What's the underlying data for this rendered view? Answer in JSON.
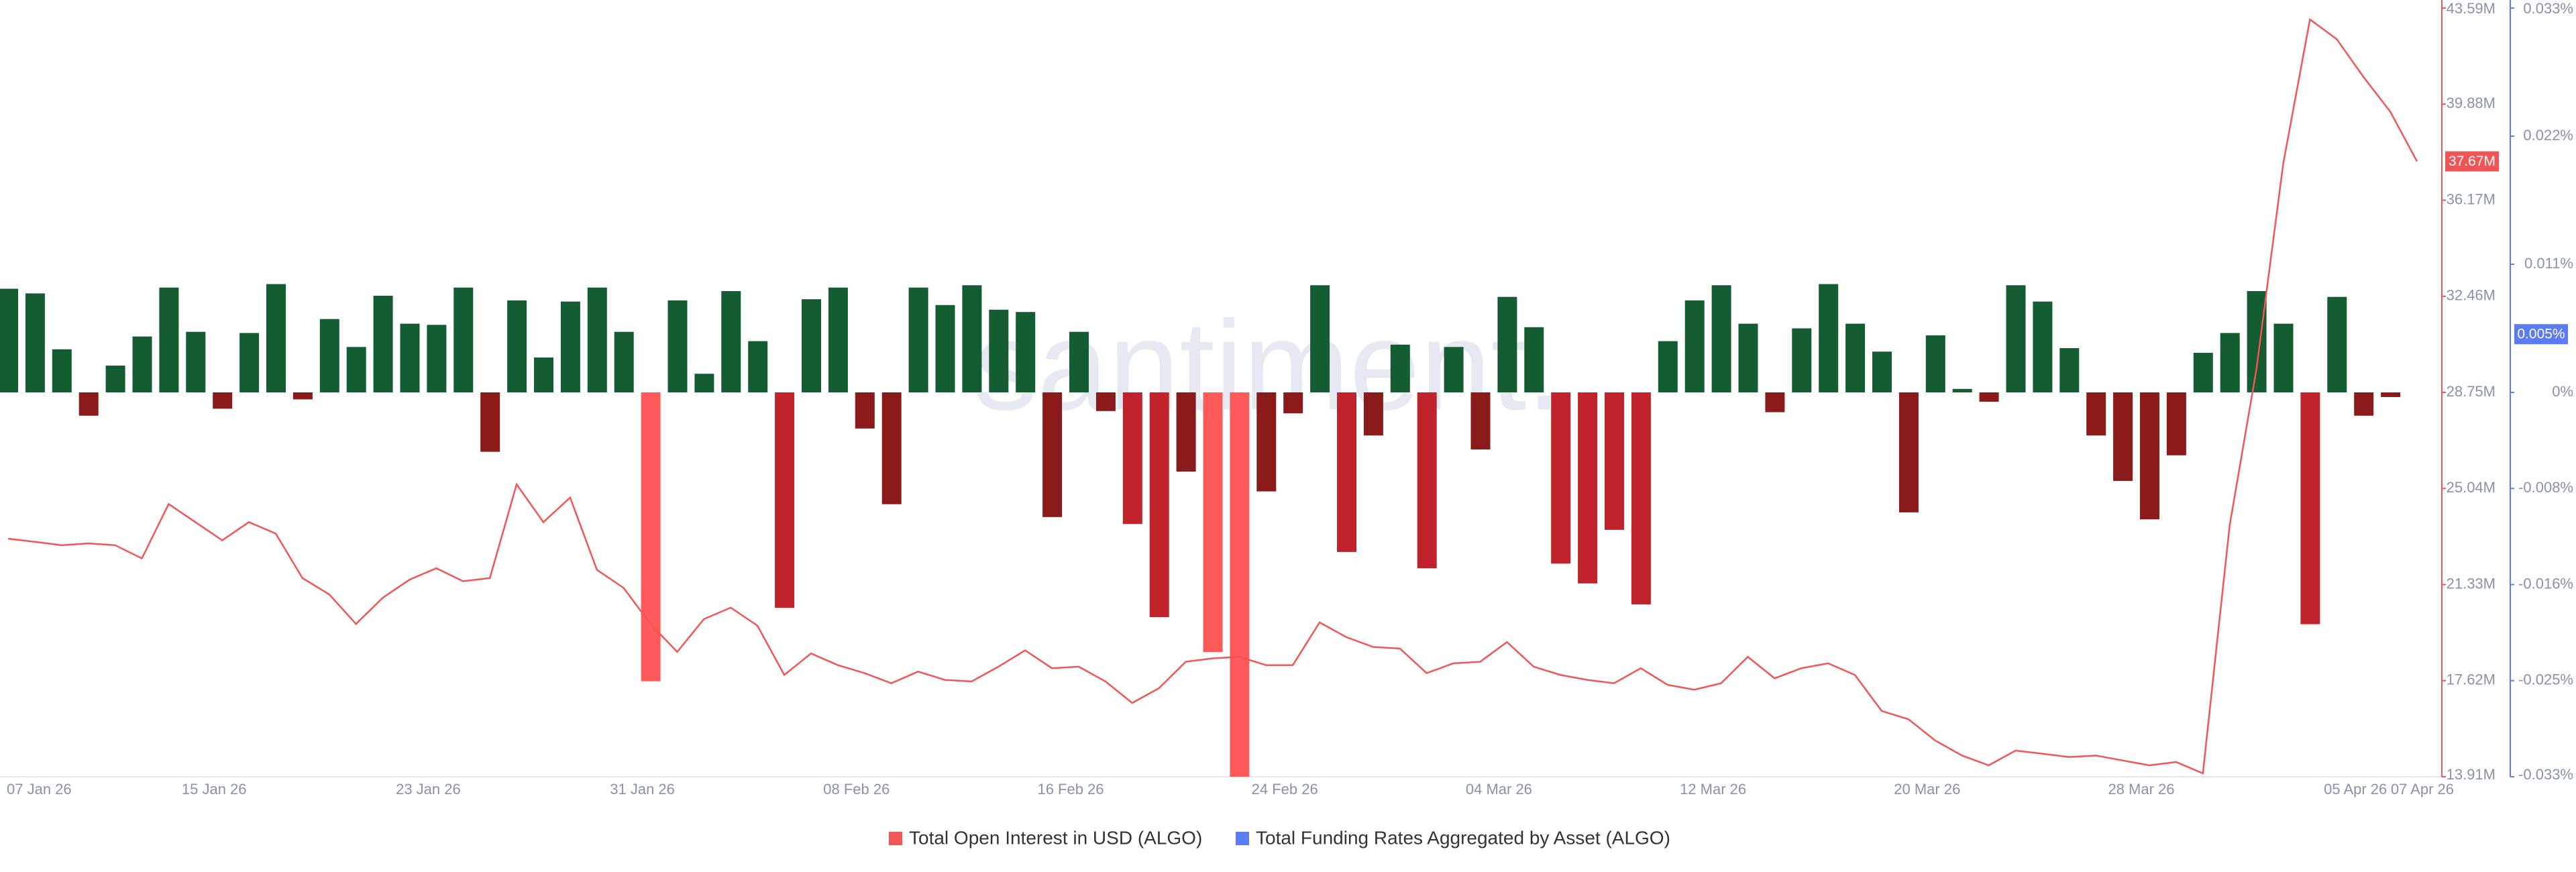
{
  "chart_data": {
    "type": "bar-line",
    "watermark": "santiment.",
    "categories": [
      "07 Jan 26",
      null,
      null,
      null,
      null,
      null,
      null,
      null,
      "15 Jan 26",
      null,
      null,
      null,
      null,
      null,
      null,
      null,
      "23 Jan 26",
      null,
      null,
      null,
      null,
      null,
      null,
      null,
      "31 Jan 26",
      null,
      null,
      null,
      null,
      null,
      null,
      null,
      "08 Feb 26",
      null,
      null,
      null,
      null,
      null,
      null,
      null,
      "16 Feb 26",
      null,
      null,
      null,
      null,
      null,
      null,
      null,
      "24 Feb 26",
      null,
      null,
      null,
      null,
      null,
      null,
      null,
      "04 Mar 26",
      null,
      null,
      null,
      null,
      null,
      null,
      null,
      "12 Mar 26",
      null,
      null,
      null,
      null,
      null,
      null,
      null,
      "20 Mar 26",
      null,
      null,
      null,
      null,
      null,
      null,
      null,
      "28 Mar 26",
      null,
      null,
      null,
      null,
      null,
      null,
      null,
      "05 Apr 26",
      null,
      "07 Apr 26"
    ],
    "series": [
      {
        "name": "Total Open Interest in USD (ALGO)",
        "type": "line",
        "axis": "y",
        "color": "#f25555",
        "values": [
          23.1,
          22.98,
          22.85,
          22.92,
          22.85,
          22.34,
          24.44,
          23.74,
          23.04,
          23.74,
          23.3,
          21.58,
          20.95,
          19.81,
          20.82,
          21.52,
          21.96,
          21.46,
          21.58,
          25.2,
          23.74,
          24.69,
          21.9,
          21.2,
          19.81,
          18.73,
          20.0,
          20.44,
          19.74,
          17.84,
          18.67,
          18.22,
          17.91,
          17.52,
          17.97,
          17.65,
          17.59,
          18.16,
          18.79,
          18.1,
          18.16,
          17.59,
          16.76,
          17.33,
          18.35,
          18.48,
          18.54,
          18.22,
          18.22,
          19.87,
          19.3,
          18.92,
          18.86,
          17.91,
          18.29,
          18.35,
          19.11,
          18.16,
          17.84,
          17.65,
          17.52,
          18.1,
          17.46,
          17.27,
          17.52,
          18.54,
          17.71,
          18.1,
          18.29,
          17.84,
          16.45,
          16.13,
          15.31,
          14.73,
          14.35,
          14.92,
          14.8,
          14.67,
          14.73,
          14.54,
          14.35,
          14.48,
          14.04,
          23.61,
          29.64,
          37.57,
          43.15,
          42.39,
          40.93,
          39.59,
          37.67
        ]
      },
      {
        "name": "Total Funding Rates Aggregated by Asset (ALGO)",
        "type": "bar",
        "axis": "y2",
        "color": "#5b7cf5",
        "values": [
          0.0089,
          0.0085,
          0.0037,
          -0.002,
          0.0023,
          0.0048,
          0.009,
          0.0052,
          -0.0014,
          0.0051,
          0.0093,
          -0.0006,
          0.0063,
          0.0039,
          0.0083,
          0.0059,
          0.0058,
          0.009,
          -0.0051,
          0.0079,
          0.003,
          0.0078,
          0.009,
          0.0052,
          -0.0248,
          0.0079,
          0.0016,
          0.0087,
          0.0044,
          -0.0185,
          0.008,
          0.009,
          -0.0031,
          -0.0096,
          0.009,
          0.0075,
          0.0092,
          0.0071,
          0.0069,
          -0.0107,
          0.0052,
          -0.0016,
          -0.0113,
          -0.0193,
          -0.0068,
          -0.0223,
          -0.033,
          -0.0085,
          -0.0018,
          0.0092,
          -0.0137,
          -0.0037,
          0.0041,
          -0.0151,
          0.0039,
          -0.0049,
          0.0082,
          0.0056,
          -0.0147,
          -0.0164,
          -0.0118,
          -0.0182,
          0.0044,
          0.0079,
          0.0092,
          0.0059,
          -0.0017,
          0.0055,
          0.0093,
          0.0059,
          0.0035,
          -0.0103,
          0.0049,
          0.0003,
          -0.0008,
          0.0092,
          0.0078,
          0.0038,
          -0.0037,
          -0.0076,
          -0.0109,
          -0.0054,
          0.0034,
          0.0051,
          0.0087,
          0.0059,
          -0.0199,
          0.0082,
          -0.002,
          -0.0004,
          null
        ],
        "bar_colors": [
          "#145c32",
          "#145c32",
          "#145c32",
          "#8b1a1a",
          "#145c32",
          "#145c32",
          "#145c32",
          "#145c32",
          "#8b1a1a",
          "#145c32",
          "#145c32",
          "#8b1a1a",
          "#145c32",
          "#145c32",
          "#145c32",
          "#145c32",
          "#145c32",
          "#145c32",
          "#8b1a1a",
          "#145c32",
          "#145c32",
          "#145c32",
          "#145c32",
          "#145c32",
          "#ff5a5a",
          "#145c32",
          "#145c32",
          "#145c32",
          "#145c32",
          "#c0232b",
          "#145c32",
          "#145c32",
          "#8b1a1a",
          "#8b1a1a",
          "#145c32",
          "#145c32",
          "#145c32",
          "#145c32",
          "#145c32",
          "#8b1a1a",
          "#145c32",
          "#8b1a1a",
          "#c0232b",
          "#c0232b",
          "#8b1a1a",
          "#ff5a5a",
          "#ff5a5a",
          "#8b1a1a",
          "#8b1a1a",
          "#145c32",
          "#c0232b",
          "#8b1a1a",
          "#145c32",
          "#c0232b",
          "#145c32",
          "#8b1a1a",
          "#145c32",
          "#145c32",
          "#c0232b",
          "#c0232b",
          "#c0232b",
          "#c0232b",
          "#145c32",
          "#145c32",
          "#145c32",
          "#145c32",
          "#8b1a1a",
          "#145c32",
          "#145c32",
          "#145c32",
          "#145c32",
          "#8b1a1a",
          "#145c32",
          "#145c32",
          "#8b1a1a",
          "#145c32",
          "#145c32",
          "#145c32",
          "#8b1a1a",
          "#8b1a1a",
          "#8b1a1a",
          "#8b1a1a",
          "#145c32",
          "#145c32",
          "#145c32",
          "#145c32",
          "#c0232b",
          "#145c32",
          "#8b1a1a",
          "#8b1a1a",
          null
        ]
      }
    ],
    "ylim": [
      13.91,
      43.59
    ],
    "yticks": [
      {
        "value": 43.59,
        "label": "43.59M"
      },
      {
        "value": 39.88,
        "label": "39.88M"
      },
      {
        "value": 36.17,
        "label": "36.17M"
      },
      {
        "value": 32.46,
        "label": "32.46M"
      },
      {
        "value": 28.75,
        "label": "28.75M"
      },
      {
        "value": 25.04,
        "label": "25.04M"
      },
      {
        "value": 21.33,
        "label": "21.33M"
      },
      {
        "value": 17.62,
        "label": "17.62M"
      },
      {
        "value": 13.91,
        "label": "13.91M"
      }
    ],
    "y2lim": [
      -0.033,
      0.033
    ],
    "y2ticks": [
      {
        "value": 0.033,
        "label": "0.033%"
      },
      {
        "value": 0.022,
        "label": "0.022%"
      },
      {
        "value": 0.011,
        "label": "0.011%"
      },
      {
        "value": 0,
        "label": "0%"
      },
      {
        "value": -0.00825,
        "label": "-0.008%"
      },
      {
        "value": -0.0165,
        "label": "-0.016%"
      },
      {
        "value": -0.02475,
        "label": "-0.025%"
      },
      {
        "value": -0.033,
        "label": "-0.033%"
      }
    ],
    "current_y": {
      "value": 37.67,
      "label": "37.67M"
    },
    "current_y2": {
      "value": 0.005,
      "label": "0.005%"
    },
    "legend": "bottom"
  }
}
